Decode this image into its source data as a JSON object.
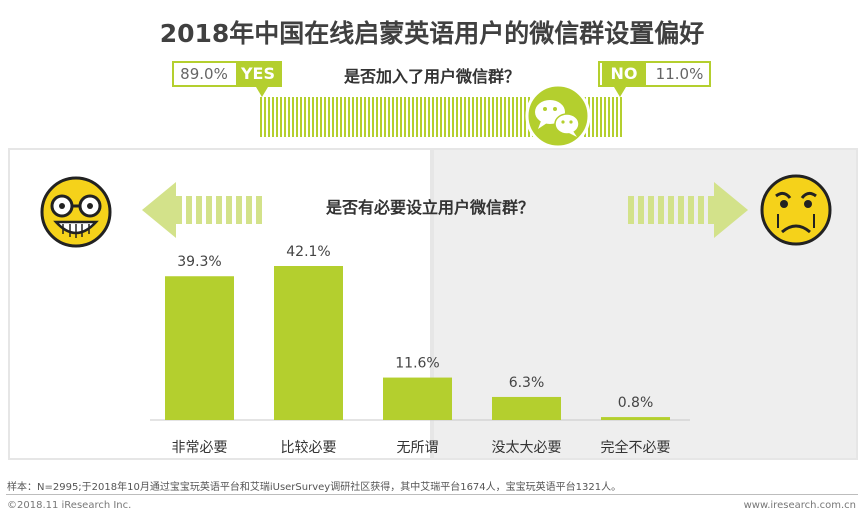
{
  "title": "2018年中国在线启蒙英语用户的微信群设置偏好",
  "join_question": {
    "label": "是否加入了用户微信群？",
    "yes": {
      "tag": "YES",
      "pct": "89.0%"
    },
    "no": {
      "tag": "NO",
      "pct": "11.0%"
    }
  },
  "necessity_question": "是否有必要设立用户微信群？",
  "icons": [
    "happy-nerd-face-icon",
    "sad-crying-face-icon",
    "wechat-icon"
  ],
  "colors": {
    "accent": "#b4cf2e",
    "face": "#f5d21a"
  },
  "chart_data": {
    "type": "bar",
    "title": "是否有必要设立用户微信群？",
    "categories": [
      "非常必要",
      "比较必要",
      "无所谓",
      "没太大必要",
      "完全不必要"
    ],
    "values": [
      39.3,
      42.1,
      11.6,
      6.3,
      0.8
    ],
    "value_labels": [
      "39.3%",
      "42.1%",
      "11.6%",
      "6.3%",
      "0.8%"
    ],
    "ylim": [
      0,
      50
    ],
    "unit": "%"
  },
  "footer": {
    "source": "样本：N=2995;于2018年10月通过宝宝玩英语平台和艾瑞iUserSurvey调研社区获得，其中艾瑞平台1674人，宝宝玩英语平台1321人。",
    "copyright": "©2018.11 iResearch Inc.",
    "website": "www.iresearch.com.cn"
  }
}
